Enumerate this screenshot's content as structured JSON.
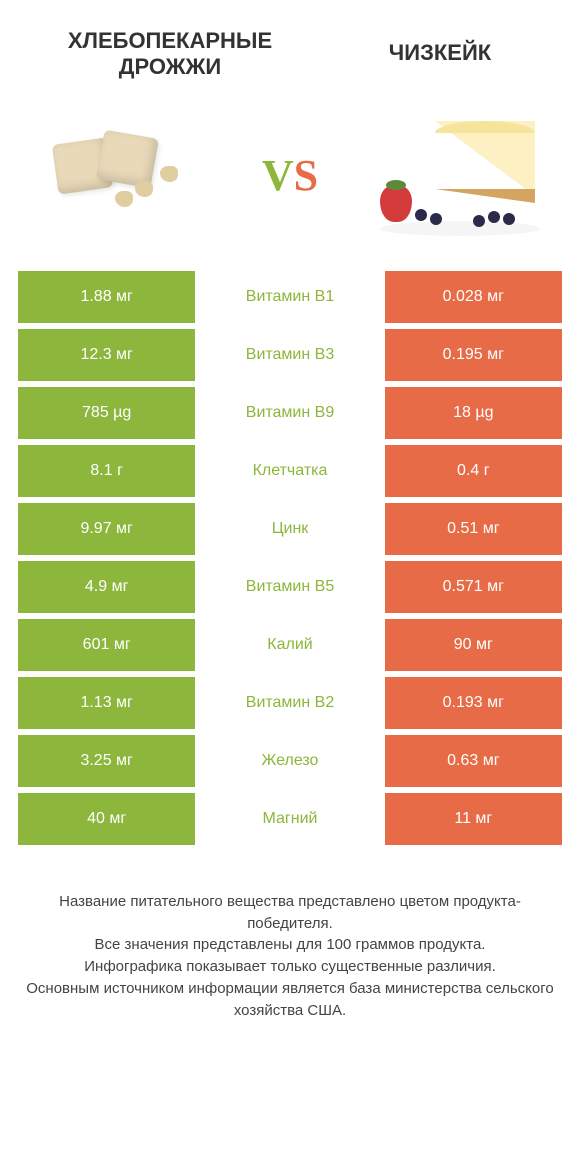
{
  "header": {
    "left_title_line1": "ХЛЕБОПЕКАРНЫЕ",
    "left_title_line2": "ДРОЖЖИ",
    "right_title": "ЧИЗКЕЙК",
    "vs_v": "V",
    "vs_s": "S"
  },
  "colors": {
    "left_cell_bg": "#8cb63c",
    "right_cell_bg": "#e86b48",
    "left_text": "#ffffff",
    "right_text": "#ffffff",
    "middle_green": "#8cb63c",
    "middle_orange": "#e86b48",
    "middle_bg": "#ffffff",
    "row_gap_color": "#ffffff"
  },
  "nutrients": [
    {
      "label": "Витамин B1",
      "left": "1.88 мг",
      "right": "0.028 мг",
      "winner": "left"
    },
    {
      "label": "Витамин B3",
      "left": "12.3 мг",
      "right": "0.195 мг",
      "winner": "left"
    },
    {
      "label": "Витамин B9",
      "left": "785 µg",
      "right": "18 µg",
      "winner": "left"
    },
    {
      "label": "Клетчатка",
      "left": "8.1 г",
      "right": "0.4 г",
      "winner": "left"
    },
    {
      "label": "Цинк",
      "left": "9.97 мг",
      "right": "0.51 мг",
      "winner": "left"
    },
    {
      "label": "Витамин B5",
      "left": "4.9 мг",
      "right": "0.571 мг",
      "winner": "left"
    },
    {
      "label": "Калий",
      "left": "601 мг",
      "right": "90 мг",
      "winner": "left"
    },
    {
      "label": "Витамин B2",
      "left": "1.13 мг",
      "right": "0.193 мг",
      "winner": "left"
    },
    {
      "label": "Железо",
      "left": "3.25 мг",
      "right": "0.63 мг",
      "winner": "left"
    },
    {
      "label": "Магний",
      "left": "40 мг",
      "right": "11 мг",
      "winner": "left"
    }
  ],
  "footer": {
    "line1": "Название питательного вещества представлено цветом продукта-победителя.",
    "line2": "Все значения представлены для 100 граммов продукта.",
    "line3": "Инфографика показывает только существенные различия.",
    "line4": "Основным источником информации является база министерства сельского хозяйства США."
  }
}
